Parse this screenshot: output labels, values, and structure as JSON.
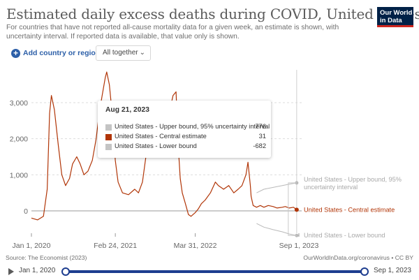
{
  "header": {
    "title": "Estimated daily excess deaths during COVID, United States",
    "subtitle": "For countries that have not reported all-cause mortality data for a given week, an estimate is shown, with uncertainty interval. If reported data is available, that value only is shown.",
    "logo_line1": "Our World",
    "logo_line2": "in Data"
  },
  "controls": {
    "add_label": "Add country or region",
    "dropdown_value": "All together"
  },
  "chart_data": {
    "type": "line",
    "title": "Estimated daily excess deaths during COVID, United States",
    "y_ticks": [
      "3,000",
      "2,000",
      "1,000",
      "0"
    ],
    "y_tick_values": [
      3000,
      2000,
      1000,
      0
    ],
    "x_ticks": [
      "Jan 1, 2020",
      "Feb 24, 2021",
      "Mar 31, 2022",
      "Sep 1, 2023"
    ],
    "x_tick_values": [
      "2020-01-01",
      "2021-02-24",
      "2022-03-31",
      "2023-09-01"
    ],
    "ylim": [
      -700,
      4000
    ],
    "grid": "horizontal",
    "colors": {
      "central": "#b13507",
      "bounds": "#b9b9b9",
      "grid": "#dddddd"
    },
    "series": [
      {
        "name": "United States - Central estimate",
        "x": [
          "2020-01-01",
          "2020-02-01",
          "2020-03-01",
          "2020-03-20",
          "2020-04-01",
          "2020-04-10",
          "2020-04-25",
          "2020-05-15",
          "2020-06-01",
          "2020-06-20",
          "2020-07-10",
          "2020-07-25",
          "2020-08-15",
          "2020-09-01",
          "2020-09-20",
          "2020-10-10",
          "2020-11-01",
          "2020-11-20",
          "2020-12-05",
          "2020-12-20",
          "2021-01-05",
          "2021-01-12",
          "2021-01-25",
          "2021-02-10",
          "2021-02-24",
          "2021-03-10",
          "2021-04-01",
          "2021-05-01",
          "2021-06-01",
          "2021-06-20",
          "2021-07-10",
          "2021-08-01",
          "2021-08-20",
          "2021-09-01",
          "2021-09-10",
          "2021-09-20",
          "2021-10-10",
          "2021-11-01",
          "2021-11-20",
          "2021-12-10",
          "2021-12-25",
          "2022-01-05",
          "2022-01-15",
          "2022-01-25",
          "2022-02-10",
          "2022-02-25",
          "2022-03-10",
          "2022-03-31",
          "2022-04-15",
          "2022-05-01",
          "2022-05-20",
          "2022-06-15",
          "2022-07-10",
          "2022-07-25",
          "2022-08-20",
          "2022-09-15",
          "2022-10-10",
          "2022-11-01",
          "2022-11-20",
          "2022-12-10",
          "2022-12-20",
          "2023-01-01",
          "2023-01-05",
          "2023-01-15",
          "2023-02-01",
          "2023-02-20",
          "2023-03-10",
          "2023-04-01",
          "2023-04-25",
          "2023-05-15",
          "2023-06-10",
          "2023-06-25",
          "2023-07-15",
          "2023-08-05",
          "2023-08-21"
        ],
        "values": [
          -200,
          -250,
          -150,
          600,
          2700,
          3200,
          2800,
          1800,
          1000,
          700,
          900,
          1300,
          1500,
          1300,
          1000,
          1100,
          1400,
          2000,
          2700,
          3200,
          3700,
          3850,
          3500,
          2600,
          1400,
          800,
          500,
          450,
          600,
          500,
          800,
          1700,
          2600,
          2300,
          1900,
          2100,
          2300,
          2500,
          2700,
          3200,
          3300,
          1800,
          900,
          500,
          200,
          -100,
          -150,
          -50,
          50,
          200,
          300,
          500,
          800,
          700,
          600,
          700,
          500,
          600,
          700,
          1000,
          1350,
          700,
          400,
          150,
          100,
          150,
          100,
          150,
          120,
          80,
          100,
          120,
          80,
          100,
          31
        ]
      },
      {
        "name": "United States - Upper bound, 95% uncertainty interval",
        "x": [
          "2023-02-01",
          "2023-03-10",
          "2023-04-25",
          "2023-06-10",
          "2023-07-15",
          "2023-08-21"
        ],
        "values": [
          500,
          600,
          650,
          700,
          740,
          776
        ]
      },
      {
        "name": "United States - Lower bound",
        "x": [
          "2023-02-01",
          "2023-03-10",
          "2023-04-25",
          "2023-06-10",
          "2023-07-15",
          "2023-08-21"
        ],
        "values": [
          -350,
          -450,
          -520,
          -580,
          -640,
          -682
        ]
      }
    ]
  },
  "line_labels": {
    "upper_line1": "United States - Upper bound, 95%",
    "upper_line2": "uncertainty interval",
    "central": "United States - Central estimate",
    "lower": "United States - Lower bound"
  },
  "tooltip": {
    "date": "Aug 21, 2023",
    "rows": [
      {
        "label": "United States - Upper bound, 95% uncertainty interval",
        "value": "776",
        "color": "#c4c4c4"
      },
      {
        "label": "United States - Central estimate",
        "value": "31",
        "color": "#b13507"
      },
      {
        "label": "United States - Lower bound",
        "value": "-682",
        "color": "#c4c4c4"
      }
    ]
  },
  "footer": {
    "source": "Source: The Economist (2023)",
    "link": "OurWorldInData.org/coronavirus • CC BY"
  },
  "timeline": {
    "start_label": "Jan 1, 2020",
    "end_label": "Sep 1, 2023"
  }
}
